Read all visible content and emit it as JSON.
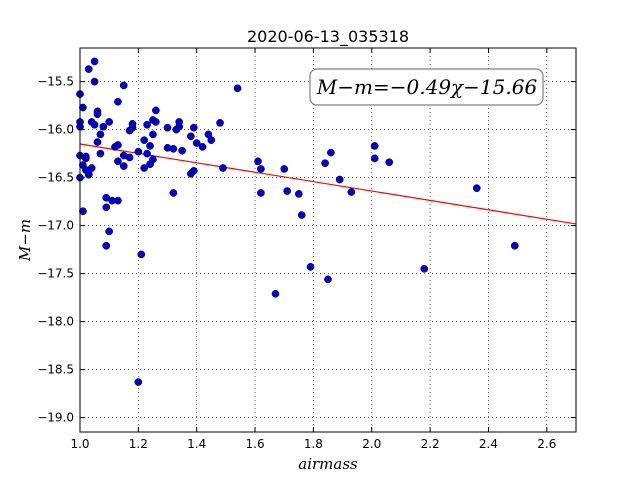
{
  "chart_data": {
    "type": "scatter",
    "title": "2020-06-13_035318",
    "xlabel": "airmass",
    "ylabel": "M−m",
    "xlim": [
      1.0,
      2.7
    ],
    "ylim": [
      -19.15,
      -15.15
    ],
    "x_ticks": [
      "1.0",
      "1.2",
      "1.4",
      "1.6",
      "1.8",
      "2.0",
      "2.2",
      "2.4",
      "2.6"
    ],
    "y_ticks": [
      "−15.5",
      "−16.0",
      "−16.5",
      "−17.0",
      "−17.5",
      "−18.0",
      "−18.5",
      "−19.0"
    ],
    "grid": true,
    "annotation": "M−m=−0.49χ−15.66",
    "fit": {
      "slope": -0.49,
      "intercept": -15.66,
      "color": "#ff0000"
    },
    "point_color": "#0000cc",
    "points": [
      [
        1.0,
        -15.63
      ],
      [
        1.0,
        -15.92
      ],
      [
        1.0,
        -15.97
      ],
      [
        1.0,
        -16.27
      ],
      [
        1.0,
        -16.5
      ],
      [
        1.01,
        -16.37
      ],
      [
        1.01,
        -16.85
      ],
      [
        1.01,
        -15.77
      ],
      [
        1.02,
        -16.3
      ],
      [
        1.02,
        -16.28
      ],
      [
        1.02,
        -16.42
      ],
      [
        1.03,
        -16.46
      ],
      [
        1.03,
        -16.47
      ],
      [
        1.03,
        -15.37
      ],
      [
        1.04,
        -15.92
      ],
      [
        1.04,
        -16.4
      ],
      [
        1.05,
        -15.29
      ],
      [
        1.05,
        -15.5
      ],
      [
        1.05,
        -15.95
      ],
      [
        1.06,
        -16.13
      ],
      [
        1.06,
        -15.81
      ],
      [
        1.06,
        -15.84
      ],
      [
        1.07,
        -16.05
      ],
      [
        1.07,
        -16.25
      ],
      [
        1.08,
        -15.97
      ],
      [
        1.09,
        -16.71
      ],
      [
        1.09,
        -16.81
      ],
      [
        1.09,
        -17.21
      ],
      [
        1.1,
        -15.92
      ],
      [
        1.1,
        -17.06
      ],
      [
        1.11,
        -16.74
      ],
      [
        1.12,
        -16.18
      ],
      [
        1.13,
        -16.16
      ],
      [
        1.13,
        -16.74
      ],
      [
        1.13,
        -16.33
      ],
      [
        1.13,
        -15.71
      ],
      [
        1.15,
        -16.27
      ],
      [
        1.15,
        -16.38
      ],
      [
        1.15,
        -15.54
      ],
      [
        1.17,
        -16.01
      ],
      [
        1.17,
        -16.29
      ],
      [
        1.18,
        -15.98
      ],
      [
        1.18,
        -15.94
      ],
      [
        1.2,
        -18.63
      ],
      [
        1.2,
        -16.23
      ],
      [
        1.21,
        -17.3
      ],
      [
        1.22,
        -16.11
      ],
      [
        1.22,
        -16.4
      ],
      [
        1.23,
        -16.25
      ],
      [
        1.23,
        -15.95
      ],
      [
        1.24,
        -16.17
      ],
      [
        1.24,
        -16.36
      ],
      [
        1.25,
        -16.05
      ],
      [
        1.25,
        -15.9
      ],
      [
        1.25,
        -16.31
      ],
      [
        1.26,
        -15.8
      ],
      [
        1.26,
        -15.92
      ],
      [
        1.3,
        -15.98
      ],
      [
        1.3,
        -16.19
      ],
      [
        1.32,
        -16.2
      ],
      [
        1.32,
        -16.66
      ],
      [
        1.33,
        -16.0
      ],
      [
        1.34,
        -15.97
      ],
      [
        1.34,
        -15.92
      ],
      [
        1.35,
        -16.22
      ],
      [
        1.38,
        -16.46
      ],
      [
        1.38,
        -16.07
      ],
      [
        1.39,
        -15.98
      ],
      [
        1.39,
        -16.43
      ],
      [
        1.4,
        -16.14
      ],
      [
        1.42,
        -16.18
      ],
      [
        1.44,
        -16.05
      ],
      [
        1.45,
        -16.11
      ],
      [
        1.48,
        -15.93
      ],
      [
        1.49,
        -16.4
      ],
      [
        1.54,
        -15.57
      ],
      [
        1.61,
        -16.33
      ],
      [
        1.62,
        -16.41
      ],
      [
        1.62,
        -16.66
      ],
      [
        1.67,
        -17.71
      ],
      [
        1.7,
        -16.41
      ],
      [
        1.71,
        -16.64
      ],
      [
        1.75,
        -16.67
      ],
      [
        1.76,
        -16.89
      ],
      [
        1.79,
        -17.43
      ],
      [
        1.84,
        -16.35
      ],
      [
        1.85,
        -17.56
      ],
      [
        1.86,
        -16.24
      ],
      [
        1.89,
        -16.52
      ],
      [
        1.93,
        -16.65
      ],
      [
        2.01,
        -16.17
      ],
      [
        2.01,
        -16.3
      ],
      [
        2.06,
        -16.34
      ],
      [
        2.18,
        -17.45
      ],
      [
        2.36,
        -16.61
      ],
      [
        2.49,
        -17.21
      ]
    ]
  }
}
